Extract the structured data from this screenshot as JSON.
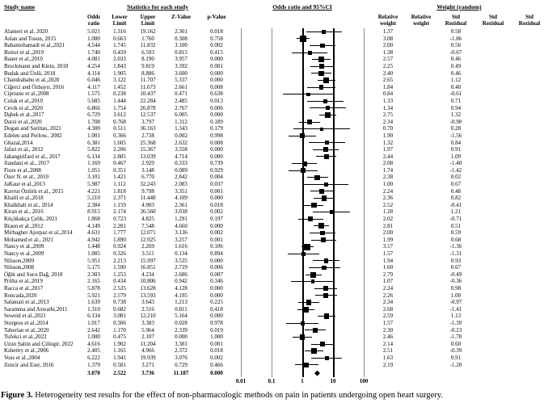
{
  "figure": {
    "caption_label": "Figure 3.",
    "caption_text": " Heterogeneity test results for the effect of non-pharmacologic methods on pain in patients undergoing open heart surgery."
  },
  "table": {
    "group_headers": {
      "study": "Study name",
      "stats": "Statistics for each study",
      "plot": "Odds ratio and 95%CI",
      "weight": "Weight (random)"
    },
    "stat_subheaders": [
      [
        "Odds",
        "ratio"
      ],
      [
        "Lower",
        "Limit"
      ],
      [
        "Upper",
        "Limit"
      ],
      [
        "",
        "Z-Value"
      ],
      [
        "",
        "p-Value"
      ]
    ],
    "weight_subheaders": [
      [
        "Relative",
        "weight"
      ],
      [
        "Relative",
        "weight"
      ],
      [
        "Std",
        "Rezidual"
      ],
      [
        "Std",
        "Rezidual"
      ],
      [
        "Std",
        "Rezidual"
      ]
    ]
  },
  "chart_data": {
    "type": "forest",
    "title": "Odds ratio and 95%CI",
    "x_axis": {
      "scale": "log",
      "tick_values": [
        0.01,
        0.1,
        1,
        10,
        100
      ],
      "tick_labels": [
        "0.01",
        "0.1",
        "1",
        "10",
        "100"
      ]
    },
    "columns": [
      "study",
      "odds_ratio",
      "lower_limit",
      "upper_limit",
      "z_value",
      "p_value",
      "relative_weight",
      "std_residual"
    ],
    "studies": [
      [
        "Alameri et al. 2020",
        "5.021",
        "1.316",
        "19.162",
        "2.361",
        "0.018",
        "1.37",
        "0.58"
      ],
      [
        "Aslan and Tosun, 2015",
        "1.080",
        "0.663",
        "1.760",
        "0.308",
        "0.758",
        "3.08",
        "-1.86"
      ],
      [
        "Babamohamadi et al.,2021",
        "4.544",
        "1.745",
        "11.832",
        "3.100",
        "0.002",
        "2.00",
        "0.56"
      ],
      [
        "Boitor et al.,2019",
        "1.740",
        "0.459",
        "6.593",
        "0.815",
        "0.415",
        "1.38",
        "-0.67"
      ],
      [
        "Bauer et al.,2010",
        "4.081",
        "2.033",
        "8.190",
        "3.957",
        "0.000",
        "2.57",
        "0.46"
      ],
      [
        "Brockmann and Klein, 2018",
        "4.254",
        "1.843",
        "9.819",
        "3.392",
        "0.001",
        "2.25",
        "0.49"
      ],
      [
        "Budak and Ünlü, 2018",
        "4.114",
        "1.905",
        "8.886",
        "3.600",
        "0.000",
        "2.40",
        "0.46"
      ],
      [
        "Chandrababu et al.,2020",
        "6.046",
        "3.122",
        "11.707",
        "5.337",
        "0.000",
        "2.65",
        "1.12"
      ],
      [
        "Ciğerci and Özbayır, 2016",
        "4.117",
        "1.452",
        "11.673",
        "2.661",
        "0.008",
        "1.84",
        "0.40"
      ],
      [
        "Cipriano et al.,2008",
        "1.575",
        "0.238",
        "10.437",
        "0.471",
        "0.638",
        "0.84",
        "-0.61"
      ],
      [
        "Colak et al.,2010",
        "5.685",
        "1.444",
        "22.284",
        "2.485",
        "0.013",
        "1.33",
        "0.71"
      ],
      [
        "Cevik et al.,2020",
        "6.866",
        "1.754",
        "26.878",
        "2.767",
        "0.006",
        "1.34",
        "0.94"
      ],
      [
        "Dąbek et al.,2017",
        "6.729",
        "3.612",
        "12.537",
        "6.005",
        "0.000",
        "2.75",
        "1.32"
      ],
      [
        "Darzi et al.,2020",
        "1.708",
        "0.768",
        "3.797",
        "1.312",
        "0.189",
        "2.34",
        "-0.90"
      ],
      [
        "Dogan and Sarittas, 2021",
        "4.300",
        "0.511",
        "36.163",
        "1.343",
        "0.179",
        "0.70",
        "0.28"
      ],
      [
        "Edelen and Perlow., 2002",
        "1.001",
        "0.366",
        "2.738",
        "0.002",
        "0.998",
        "1.90",
        "-1.56"
      ],
      [
        "Ghazal,2014",
        "6.381",
        "1.605",
        "25.368",
        "2.632",
        "0.008",
        "1.32",
        "0.84"
      ],
      [
        "Jafari et al., 2012",
        "5.822",
        "2.206",
        "15.367",
        "3.558",
        "0.000",
        "1.97",
        "0.91"
      ],
      [
        "Jahangirifard et al., 2017",
        "6.134",
        "2.885",
        "13.039",
        "4.714",
        "0.000",
        "2.44",
        "1.09"
      ],
      [
        "Jiandani et al., 2017",
        "1.169",
        "0.467",
        "2.929",
        "0.333",
        "0.739",
        "2.08",
        "-1.40"
      ],
      [
        "Fiore et al.,2008",
        "1.051",
        "0.351",
        "3.148",
        "0.089",
        "0.929",
        "1.74",
        "-1.42"
      ],
      [
        "Özer N. et al., 2010",
        "3.101",
        "1.421",
        "6.770",
        "2.842",
        "0.004",
        "2.38",
        "0.02"
      ],
      [
        "JaKaur et al.,2013",
        "5.987",
        "1.112",
        "32.243",
        "2.083",
        "0.037",
        "1.00",
        "0.67"
      ],
      [
        "Kavrut Öztürk et al., 2015",
        "4.221",
        "1.818",
        "9.798",
        "3.351",
        "0.001",
        "2.24",
        "0.48"
      ],
      [
        "Khalil et al.,2018",
        "5.210",
        "2.371",
        "11.448",
        "4.109",
        "0.000",
        "2.36",
        "0.82"
      ],
      [
        "Khalkhali et al., 2014",
        "2.384",
        "1.159",
        "4.903",
        "2.361",
        "0.018",
        "2.52",
        "-0.41"
      ],
      [
        "Kiran et al., 2016",
        "8.915",
        "2.174",
        "36.560",
        "3.038",
        "0.002",
        "1.28",
        "1.21"
      ],
      [
        "Küçükakça Çelik, 2021",
        "1.868",
        "0.723",
        "4.825",
        "1.291",
        "0.197",
        "2.02",
        "-0.71"
      ],
      [
        "Braun et al.,2012",
        "4.149",
        "2.281",
        "7.548",
        "4.660",
        "0.000",
        "2.81",
        "0.51"
      ],
      [
        "Mirbagher Ajorpaz et al.,2014",
        "4.631",
        "1.777",
        "12.071",
        "3.136",
        "0.002",
        "2.00",
        "0.59"
      ],
      [
        "Mohamed et al., 2021",
        "4.942",
        "1.890",
        "12.925",
        "3.257",
        "0.001",
        "1.99",
        "0.68"
      ],
      [
        "Nancy et al.,2009",
        "1.448",
        "0.924",
        "2.269",
        "1.616",
        "0.106",
        "3.17",
        "-1.36"
      ],
      [
        "Nancy et al.,2009",
        "1.085",
        "0.326",
        "3.511",
        "0.134",
        "0.894",
        "1.57",
        "-1.31"
      ],
      [
        "Nilsson,2009",
        "5.951",
        "2.213",
        "15.997",
        "3.535",
        "0.000",
        "1.94",
        "0.93"
      ],
      [
        "Nilsson,2008",
        "5.175",
        "1.590",
        "16.851",
        "2.729",
        "0.006",
        "1.60",
        "0.67"
      ],
      [
        "Öğüt and Sucu Dağ, 2018",
        "2.303",
        "1.253",
        "4.234",
        "2.686",
        "0.007",
        "2.79",
        "-0.49"
      ],
      [
        "Pritha et al.,2019",
        "2.165",
        "0.434",
        "10.806",
        "0.942",
        "0.346",
        "1.07",
        "-0.36"
      ],
      [
        "Racca et al.,2017",
        "5.878",
        "2.535",
        "13.628",
        "4.128",
        "0.000",
        "2.24",
        "0.98"
      ],
      [
        "Roncada,2020",
        "5.921",
        "2.579",
        "13.593",
        "4.195",
        "0.000",
        "2.26",
        "1.00"
      ],
      [
        "Salamati et al.,2013",
        "1.639",
        "0.738",
        "3.643",
        "1.213",
        "0.225",
        "2.34",
        "-0.97"
      ],
      [
        "Saramma and Aswathi,2011",
        "1.310",
        "0.682",
        "2.516",
        "0.811",
        "0.418",
        "2.68",
        "-1.41"
      ],
      [
        "Seweid et al.,2021",
        "6.134",
        "3.081",
        "12.210",
        "5.164",
        "0.000",
        "2.59",
        "1.13"
      ],
      [
        "Sturgess et al.,2014",
        "1.017",
        "0.306",
        "3.383",
        "0.028",
        "0.978",
        "1.57",
        "-1.39"
      ],
      [
        "Taherian et al.,2020",
        "2.642",
        "1.170",
        "5.964",
        "2.339",
        "0.019",
        "2.30",
        "-0.23"
      ],
      [
        "Tufekci et al.,2022",
        "1.000",
        "0.475",
        "2.107",
        "0.000",
        "1.000",
        "2.46",
        "-1.78"
      ],
      [
        "Uzun Şahin and Çilingir, 2022",
        "4.616",
        "1.902",
        "11.204",
        "3.381",
        "0.001",
        "2.14",
        "0.60"
      ],
      [
        "Kshettry et al.,2006",
        "2.405",
        "1.165",
        "4.966",
        "2.372",
        "0.018",
        "2.51",
        "-0.39"
      ],
      [
        "Voss et al.,2004",
        "6.222",
        "1.941",
        "19.939",
        "3.076",
        "0.002",
        "1.63",
        "0.91"
      ],
      [
        "Zencir and Eser, 2016",
        "1.379",
        "0.581",
        "3.271",
        "0.729",
        "0.466",
        "2.19",
        "-1.20"
      ]
    ],
    "total": [
      "",
      "3.070",
      "2.522",
      "3.736",
      "11.187",
      "0.000",
      "",
      ""
    ]
  }
}
